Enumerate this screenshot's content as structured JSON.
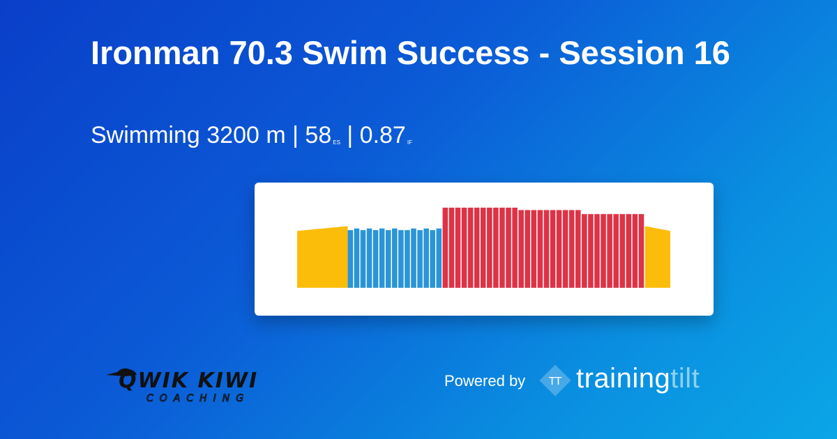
{
  "workout": {
    "title": "Ironman 70.3 Swim Success - Session 16",
    "sport": "Swimming",
    "distance": "3200 m",
    "sep": "|",
    "es_value": "58",
    "es_unit": "ES",
    "if_value": "0.87",
    "if_unit": "IF"
  },
  "branding": {
    "coach_logo_line1": "QWIK KIWI",
    "coach_logo_line2": "COACHING",
    "powered_by": "Powered by",
    "platform_mark": "TT",
    "platform_name_part1": "training",
    "platform_name_part2": "tilt"
  },
  "colors": {
    "warmup": "#fcbd0a",
    "drill": "#2a95d6",
    "main": "#dd3347",
    "cooldown": "#fcbd0a"
  },
  "chart_data": {
    "type": "bar",
    "title": "",
    "xlabel": "",
    "ylabel": "",
    "ylim": [
      0,
      1
    ],
    "note_units": "relative intensity",
    "segments": [
      {
        "zone": "warmup",
        "kind": "ramp",
        "start": 0.71,
        "end": 0.77,
        "width": 8
      },
      {
        "zone": "drill",
        "kind": "reps",
        "count": 15,
        "values": [
          0.72,
          0.74,
          0.72,
          0.74,
          0.72,
          0.74,
          0.72,
          0.74,
          0.72,
          0.72,
          0.74,
          0.72,
          0.74,
          0.72,
          0.74
        ]
      },
      {
        "zone": "main",
        "kind": "reps",
        "count": 12,
        "values": [
          1.0,
          1.0,
          1.0,
          1.0,
          1.0,
          1.0,
          1.0,
          1.0,
          1.0,
          1.0,
          1.0,
          1.0
        ]
      },
      {
        "zone": "main",
        "kind": "reps",
        "count": 10,
        "values": [
          0.97,
          0.97,
          0.97,
          0.97,
          0.97,
          0.97,
          0.97,
          0.97,
          0.97,
          0.97
        ]
      },
      {
        "zone": "main",
        "kind": "reps",
        "count": 10,
        "values": [
          0.92,
          0.92,
          0.92,
          0.92,
          0.92,
          0.92,
          0.92,
          0.92,
          0.92,
          0.92
        ]
      },
      {
        "zone": "cooldown",
        "kind": "ramp",
        "start": 0.77,
        "end": 0.71,
        "width": 4
      }
    ]
  }
}
